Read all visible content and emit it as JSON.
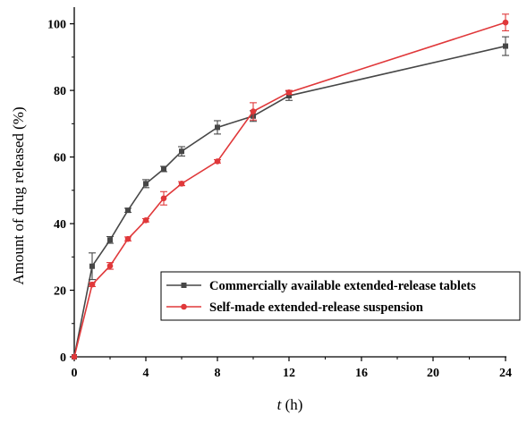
{
  "chart_data": {
    "type": "line",
    "title": "",
    "xlabel_italic": "t",
    "xlabel_unit": " (h)",
    "ylabel": "Amount of drug released (%)",
    "x_ticks": [
      0,
      4,
      8,
      12,
      16,
      20,
      24
    ],
    "y_ticks": [
      0,
      20,
      40,
      60,
      80,
      100
    ],
    "ylim": [
      0,
      105
    ],
    "grid": false,
    "legend_position": "lower-right",
    "series": [
      {
        "name": "Commercially available extended-release tablets",
        "color": "#474747",
        "marker": "square",
        "x": [
          0,
          1,
          2,
          3,
          4,
          5,
          6,
          8,
          10,
          12,
          24
        ],
        "y": [
          0,
          27.2,
          35.1,
          44.0,
          52.0,
          56.4,
          61.7,
          68.9,
          72.3,
          78.4,
          93.3
        ],
        "err": [
          0,
          4.0,
          1.0,
          0.6,
          1.2,
          0.8,
          1.4,
          2.0,
          1.6,
          1.4,
          2.8
        ]
      },
      {
        "name": "Self-made extended-release suspension",
        "color": "#e0383a",
        "marker": "circle",
        "x": [
          0,
          1,
          2,
          3,
          4,
          5,
          6,
          8,
          10,
          12,
          24
        ],
        "y": [
          0,
          21.7,
          27.3,
          35.4,
          41.0,
          47.6,
          52.0,
          58.7,
          73.7,
          79.4,
          100.4
        ],
        "err": [
          0,
          0.6,
          1.0,
          0.6,
          0.5,
          2.0,
          0.6,
          0.5,
          2.6,
          0.6,
          2.5
        ]
      }
    ]
  }
}
